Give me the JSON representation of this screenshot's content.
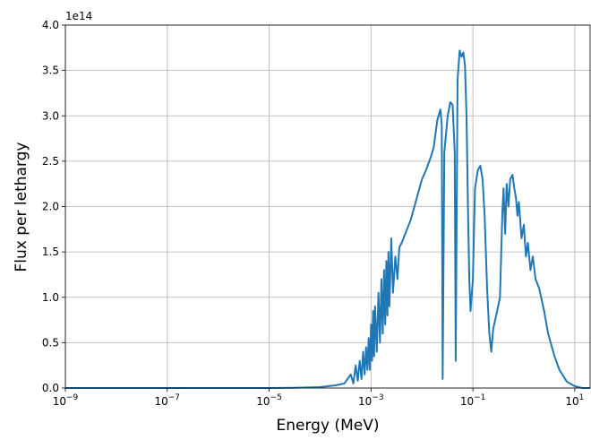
{
  "chart_data": {
    "type": "line",
    "title": "",
    "xlabel": "Energy (MeV)",
    "ylabel": "Flux per lethargy",
    "xscale": "log",
    "xlim": [
      1e-09,
      20
    ],
    "ylim": [
      0,
      400000000000000.0
    ],
    "y_offset_label": "1e14",
    "grid": true,
    "legend": "none",
    "x_ticks": [
      {
        "value": 1e-09,
        "base": "10",
        "exp": "−9"
      },
      {
        "value": 1e-07,
        "base": "10",
        "exp": "−7"
      },
      {
        "value": 1e-05,
        "base": "10",
        "exp": "−5"
      },
      {
        "value": 0.001,
        "base": "10",
        "exp": "−3"
      },
      {
        "value": 0.1,
        "base": "10",
        "exp": "−1"
      },
      {
        "value": 10,
        "base": "10",
        "exp": "1"
      }
    ],
    "y_ticks": [
      {
        "value": 0.0,
        "label": "0.0"
      },
      {
        "value": 50000000000000.0,
        "label": "0.5"
      },
      {
        "value": 100000000000000.0,
        "label": "1.0"
      },
      {
        "value": 150000000000000.0,
        "label": "1.5"
      },
      {
        "value": 200000000000000.0,
        "label": "2.0"
      },
      {
        "value": 250000000000000.0,
        "label": "2.5"
      },
      {
        "value": 300000000000000.0,
        "label": "3.0"
      },
      {
        "value": 350000000000000.0,
        "label": "3.5"
      },
      {
        "value": 400000000000000.0,
        "label": "4.0"
      }
    ],
    "series": [
      {
        "color": "#1f77b4",
        "points": [
          [
            1e-09,
            0
          ],
          [
            1e-07,
            0
          ],
          [
            1e-06,
            0
          ],
          [
            1e-05,
            50000000000.0
          ],
          [
            3e-05,
            200000000000.0
          ],
          [
            0.0001,
            1000000000000.0
          ],
          [
            0.0002,
            3000000000000.0
          ],
          [
            0.0003,
            5000000000000.0
          ],
          [
            0.0004,
            15000000000000.0
          ],
          [
            0.00045,
            5000000000000.0
          ],
          [
            0.0005,
            25000000000000.0
          ],
          [
            0.00055,
            8000000000000.0
          ],
          [
            0.0006,
            30000000000000.0
          ],
          [
            0.00065,
            10000000000000.0
          ],
          [
            0.0007,
            40000000000000.0
          ],
          [
            0.00075,
            15000000000000.0
          ],
          [
            0.0008,
            45000000000000.0
          ],
          [
            0.00085,
            20000000000000.0
          ],
          [
            0.0009,
            55000000000000.0
          ],
          [
            0.00095,
            20000000000000.0
          ],
          [
            0.001,
            70000000000000.0
          ],
          [
            0.00105,
            30000000000000.0
          ],
          [
            0.0011,
            85000000000000.0
          ],
          [
            0.00115,
            35000000000000.0
          ],
          [
            0.0012,
            90000000000000.0
          ],
          [
            0.0013,
            40000000000000.0
          ],
          [
            0.0014,
            105000000000000.0
          ],
          [
            0.0015,
            50000000000000.0
          ],
          [
            0.0016,
            120000000000000.0
          ],
          [
            0.0017,
            60000000000000.0
          ],
          [
            0.0018,
            130000000000000.0
          ],
          [
            0.0019,
            70000000000000.0
          ],
          [
            0.002,
            140000000000000.0
          ],
          [
            0.0021,
            80000000000000.0
          ],
          [
            0.0022,
            150000000000000.0
          ],
          [
            0.0023,
            90000000000000.0
          ],
          [
            0.0025,
            165000000000000.0
          ],
          [
            0.0027,
            105000000000000.0
          ],
          [
            0.003,
            145000000000000.0
          ],
          [
            0.0033,
            120000000000000.0
          ],
          [
            0.0036,
            155000000000000.0
          ],
          [
            0.004,
            160000000000000.0
          ],
          [
            0.006,
            185000000000000.0
          ],
          [
            0.01,
            230000000000000.0
          ],
          [
            0.012,
            240000000000000.0
          ],
          [
            0.015,
            255000000000000.0
          ],
          [
            0.017,
            265000000000000.0
          ],
          [
            0.02,
            295000000000000.0
          ],
          [
            0.023,
            307000000000000.0
          ],
          [
            0.0245,
            290000000000000.0
          ],
          [
            0.0255,
            10000000000000.0
          ],
          [
            0.0275,
            260000000000000.0
          ],
          [
            0.032,
            300000000000000.0
          ],
          [
            0.036,
            315000000000000.0
          ],
          [
            0.04,
            312000000000000.0
          ],
          [
            0.044,
            260000000000000.0
          ],
          [
            0.046,
            30000000000000.0
          ],
          [
            0.05,
            340000000000000.0
          ],
          [
            0.055,
            372000000000000.0
          ],
          [
            0.06,
            365000000000000.0
          ],
          [
            0.065,
            370000000000000.0
          ],
          [
            0.07,
            355000000000000.0
          ],
          [
            0.075,
            300000000000000.0
          ],
          [
            0.08,
            200000000000000.0
          ],
          [
            0.085,
            120000000000000.0
          ],
          [
            0.09,
            85000000000000.0
          ],
          [
            0.1,
            120000000000000.0
          ],
          [
            0.11,
            220000000000000.0
          ],
          [
            0.125,
            240000000000000.0
          ],
          [
            0.14,
            245000000000000.0
          ],
          [
            0.155,
            230000000000000.0
          ],
          [
            0.17,
            190000000000000.0
          ],
          [
            0.19,
            110000000000000.0
          ],
          [
            0.21,
            60000000000000.0
          ],
          [
            0.23,
            40000000000000.0
          ],
          [
            0.25,
            65000000000000.0
          ],
          [
            0.3,
            85000000000000.0
          ],
          [
            0.34,
            100000000000000.0
          ],
          [
            0.38,
            195000000000000.0
          ],
          [
            0.4,
            220000000000000.0
          ],
          [
            0.43,
            170000000000000.0
          ],
          [
            0.46,
            225000000000000.0
          ],
          [
            0.5,
            200000000000000.0
          ],
          [
            0.54,
            230000000000000.0
          ],
          [
            0.6,
            235000000000000.0
          ],
          [
            0.65,
            220000000000000.0
          ],
          [
            0.7,
            210000000000000.0
          ],
          [
            0.75,
            190000000000000.0
          ],
          [
            0.8,
            205000000000000.0
          ],
          [
            0.9,
            165000000000000.0
          ],
          [
            1.0,
            180000000000000.0
          ],
          [
            1.1,
            145000000000000.0
          ],
          [
            1.2,
            160000000000000.0
          ],
          [
            1.35,
            130000000000000.0
          ],
          [
            1.5,
            145000000000000.0
          ],
          [
            1.7,
            120000000000000.0
          ],
          [
            2.0,
            110000000000000.0
          ],
          [
            2.5,
            85000000000000.0
          ],
          [
            3.0,
            60000000000000.0
          ],
          [
            4.0,
            35000000000000.0
          ],
          [
            5.0,
            20000000000000.0
          ],
          [
            7.0,
            7000000000000.0
          ],
          [
            10.0,
            2000000000000.0
          ],
          [
            14.0,
            0.0
          ],
          [
            20.0,
            0.0
          ]
        ]
      }
    ]
  }
}
